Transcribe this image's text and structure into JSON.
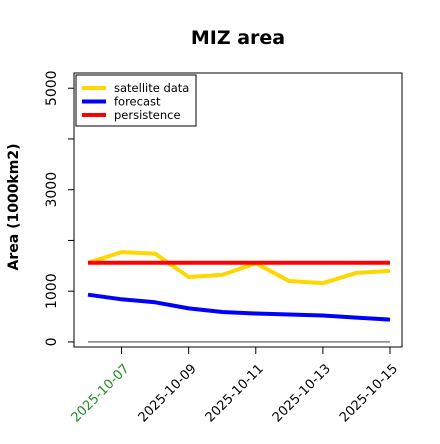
{
  "chart_data": {
    "type": "line",
    "title": "MIZ area",
    "xlabel": "",
    "ylabel": "Area (1000km2)",
    "x": [
      "2025-10-06",
      "2025-10-07",
      "2025-10-08",
      "2025-10-09",
      "2025-10-10",
      "2025-10-11",
      "2025-10-12",
      "2025-10-13",
      "2025-10-14",
      "2025-10-15"
    ],
    "xticks": [
      "2025-10-07",
      "2025-10-09",
      "2025-10-11",
      "2025-10-13",
      "2025-10-15"
    ],
    "xtick_colors": [
      "#228B22",
      "#000000",
      "#000000",
      "#000000",
      "#000000"
    ],
    "yticks": [
      0,
      1000,
      3000,
      5000
    ],
    "yticks_minor": [
      2000,
      4000
    ],
    "ylim": [
      -100,
      5300
    ],
    "xlim": [
      "2025-10-05.5",
      "2025-10-15.5"
    ],
    "series": [
      {
        "name": "satellite data",
        "color": "#FFD700",
        "values": [
          1560,
          1770,
          1740,
          1280,
          1320,
          1550,
          1200,
          1160,
          1360,
          1400
        ]
      },
      {
        "name": "forecast",
        "color": "#0000FF",
        "values": [
          930,
          840,
          780,
          660,
          590,
          560,
          540,
          520,
          480,
          440
        ]
      },
      {
        "name": "persistence",
        "color": "#FF0000",
        "values": [
          1560,
          1560,
          1560,
          1560,
          1560,
          1560,
          1560,
          1560,
          1560,
          1560
        ]
      }
    ],
    "reference_line": {
      "value": 0,
      "color": "#808080"
    },
    "legend": "top-left",
    "grid": false
  }
}
